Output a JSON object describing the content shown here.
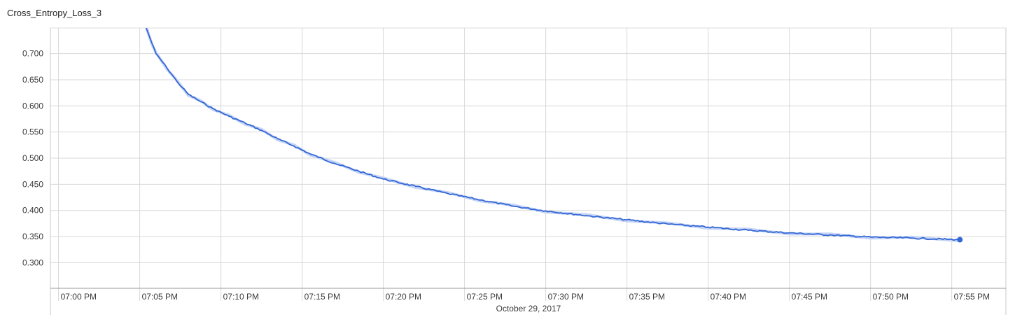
{
  "chart_data": {
    "type": "line",
    "title": "Cross_Entropy_Loss_3",
    "xlabel": "",
    "ylabel": "",
    "date_label": "October 29, 2017",
    "x_ticks": [
      "07:00 PM",
      "07:05 PM",
      "07:10 PM",
      "07:15 PM",
      "07:20 PM",
      "07:25 PM",
      "07:30 PM",
      "07:35 PM",
      "07:40 PM",
      "07:45 PM",
      "07:50 PM",
      "07:55 PM"
    ],
    "y_ticks": [
      "0.300",
      "0.350",
      "0.400",
      "0.450",
      "0.500",
      "0.550",
      "0.600",
      "0.650",
      "0.700"
    ],
    "xlim": [
      "06:59:30 PM",
      "07:58:20 PM"
    ],
    "ylim": [
      0.251,
      0.749
    ],
    "grid": true,
    "line_color": "#3367d6",
    "smoothed_color": "#c5d4f5",
    "series": [
      {
        "name": "",
        "x": [
          "07:05:24 PM",
          "07:05:45 PM",
          "07:06:00 PM",
          "07:06:40 PM",
          "07:07:20 PM",
          "07:08:00 PM",
          "07:08:45 PM",
          "07:09:30 PM",
          "07:10:30 PM",
          "07:11:30 PM",
          "07:12:30 PM",
          "07:13:30 PM",
          "07:14:30 PM",
          "07:15:30 PM",
          "07:17:00 PM",
          "07:18:30 PM",
          "07:20:00 PM",
          "07:22:00 PM",
          "07:24:00 PM",
          "07:26:00 PM",
          "07:28:00 PM",
          "07:30:00 PM",
          "07:32:30 PM",
          "07:35:00 PM",
          "07:37:30 PM",
          "07:40:00 PM",
          "07:42:30 PM",
          "07:45:00 PM",
          "07:47:30 PM",
          "07:50:00 PM",
          "07:52:30 PM",
          "07:55:30 PM"
        ],
        "y": [
          0.749,
          0.72,
          0.7,
          0.673,
          0.645,
          0.622,
          0.608,
          0.595,
          0.58,
          0.567,
          0.553,
          0.537,
          0.523,
          0.508,
          0.49,
          0.475,
          0.46,
          0.446,
          0.432,
          0.42,
          0.408,
          0.399,
          0.39,
          0.382,
          0.374,
          0.368,
          0.362,
          0.357,
          0.353,
          0.349,
          0.347,
          0.344
        ]
      }
    ]
  }
}
